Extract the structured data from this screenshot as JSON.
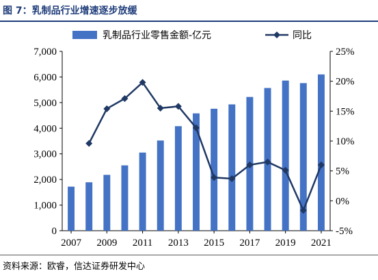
{
  "figure": {
    "title": "图 7：乳制品行业增速逐步放缓",
    "source": "资料来源：欧睿，信达证券研发中心"
  },
  "chart_data": {
    "type": "bar+line",
    "title": "图 7：乳制品行业增速逐步放缓",
    "categories": [
      "2007",
      "2008",
      "2009",
      "2010",
      "2011",
      "2012",
      "2013",
      "2014",
      "2015",
      "2016",
      "2017",
      "2018",
      "2019",
      "2020",
      "2021"
    ],
    "x_tick_labels": [
      "2007",
      "2009",
      "2011",
      "2013",
      "2015",
      "2017",
      "2019",
      "2021"
    ],
    "series": [
      {
        "name": "乳制品行业零售金额-亿元",
        "type": "bar",
        "axis": "left",
        "color": "#4472c4",
        "values": [
          1720,
          1890,
          2180,
          2550,
          3050,
          3520,
          4080,
          4580,
          4760,
          4930,
          5220,
          5570,
          5860,
          5760,
          6100
        ]
      },
      {
        "name": "同比",
        "type": "line",
        "axis": "right",
        "color": "#1f3864",
        "marker": "diamond",
        "values": [
          null,
          9.6,
          15.4,
          17.1,
          19.8,
          15.5,
          15.8,
          12.2,
          3.9,
          3.7,
          6.0,
          6.5,
          5.1,
          -1.6,
          6.0
        ]
      }
    ],
    "y_left": {
      "ylim": [
        0,
        7000
      ],
      "ticks": [
        "0",
        "1,000",
        "2,000",
        "3,000",
        "4,000",
        "5,000",
        "6,000",
        "7,000"
      ]
    },
    "y_right": {
      "ylim": [
        -5,
        25
      ],
      "ticks": [
        "-5%",
        "0%",
        "5%",
        "10%",
        "15%",
        "20%",
        "25%"
      ]
    },
    "grid": false,
    "legend_position": "top"
  }
}
